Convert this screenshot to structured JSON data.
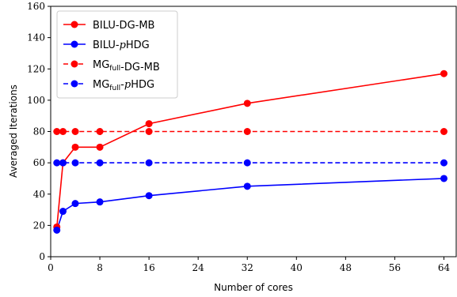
{
  "chart_data": {
    "type": "line",
    "xlabel": "Number of cores",
    "ylabel": "Averaged Iterations",
    "xlim": [
      0,
      66
    ],
    "ylim": [
      0,
      160
    ],
    "xticks": [
      0,
      8,
      16,
      24,
      32,
      40,
      48,
      56,
      64
    ],
    "yticks": [
      0,
      20,
      40,
      60,
      80,
      100,
      120,
      140,
      160
    ],
    "grid": false,
    "legend_position": "top-left",
    "series": [
      {
        "name": "BILU-DG-MB",
        "color": "#ff0000",
        "dashed": false,
        "x": [
          1,
          2,
          4,
          8,
          16,
          32,
          64
        ],
        "y": [
          19,
          60,
          70,
          70,
          85,
          98,
          117
        ]
      },
      {
        "name": "BILU-pHDG",
        "color": "#0000ff",
        "dashed": false,
        "x": [
          1,
          2,
          4,
          8,
          16,
          32,
          64
        ],
        "y": [
          17,
          29,
          34,
          35,
          39,
          45,
          50
        ]
      },
      {
        "name": "MGfull-DG-MB",
        "color": "#ff0000",
        "dashed": true,
        "x": [
          1,
          2,
          4,
          8,
          16,
          32,
          64
        ],
        "y": [
          80,
          80,
          80,
          80,
          80,
          80,
          80
        ]
      },
      {
        "name": "MGfull-pHDG",
        "color": "#0000ff",
        "dashed": true,
        "x": [
          1,
          2,
          4,
          8,
          16,
          32,
          64
        ],
        "y": [
          60,
          60,
          60,
          60,
          60,
          60,
          60
        ]
      }
    ],
    "legend": [
      {
        "main": "BILU-DG-MB",
        "sub": "",
        "italic": "",
        "tail": ""
      },
      {
        "main": "BILU-",
        "sub": "",
        "italic": "p",
        "tail": "HDG"
      },
      {
        "main": "MG",
        "sub": "full",
        "italic": "",
        "tail": "-DG-MB"
      },
      {
        "main": "MG",
        "sub": "full",
        "italic": "p",
        "tail": "HDG",
        "dash": "-"
      }
    ]
  }
}
